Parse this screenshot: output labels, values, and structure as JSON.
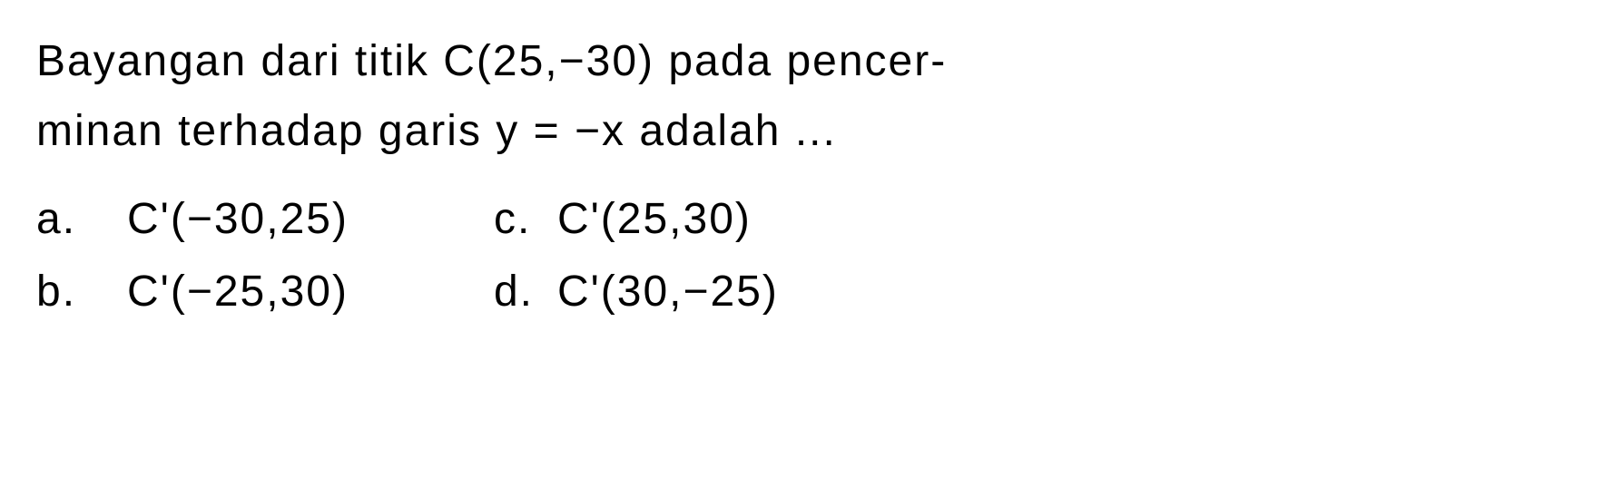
{
  "question": {
    "line1": "Bayangan dari titik C(25,−30) pada pencer-",
    "line2": "minan terhadap garis y = −x adalah ..."
  },
  "options": {
    "a": {
      "label": "a.",
      "value": "C'(−30,25)"
    },
    "b": {
      "label": "b.",
      "value": "C'(−25,30)"
    },
    "c": {
      "label": "c.",
      "value": "C'(25,30)"
    },
    "d": {
      "label": "d.",
      "value": "C'(30,−25)"
    }
  },
  "styling": {
    "fontSize": 48,
    "textColor": "#000000",
    "backgroundColor": "#ffffff",
    "letterSpacing": 2,
    "lineHeight": 1.6
  }
}
